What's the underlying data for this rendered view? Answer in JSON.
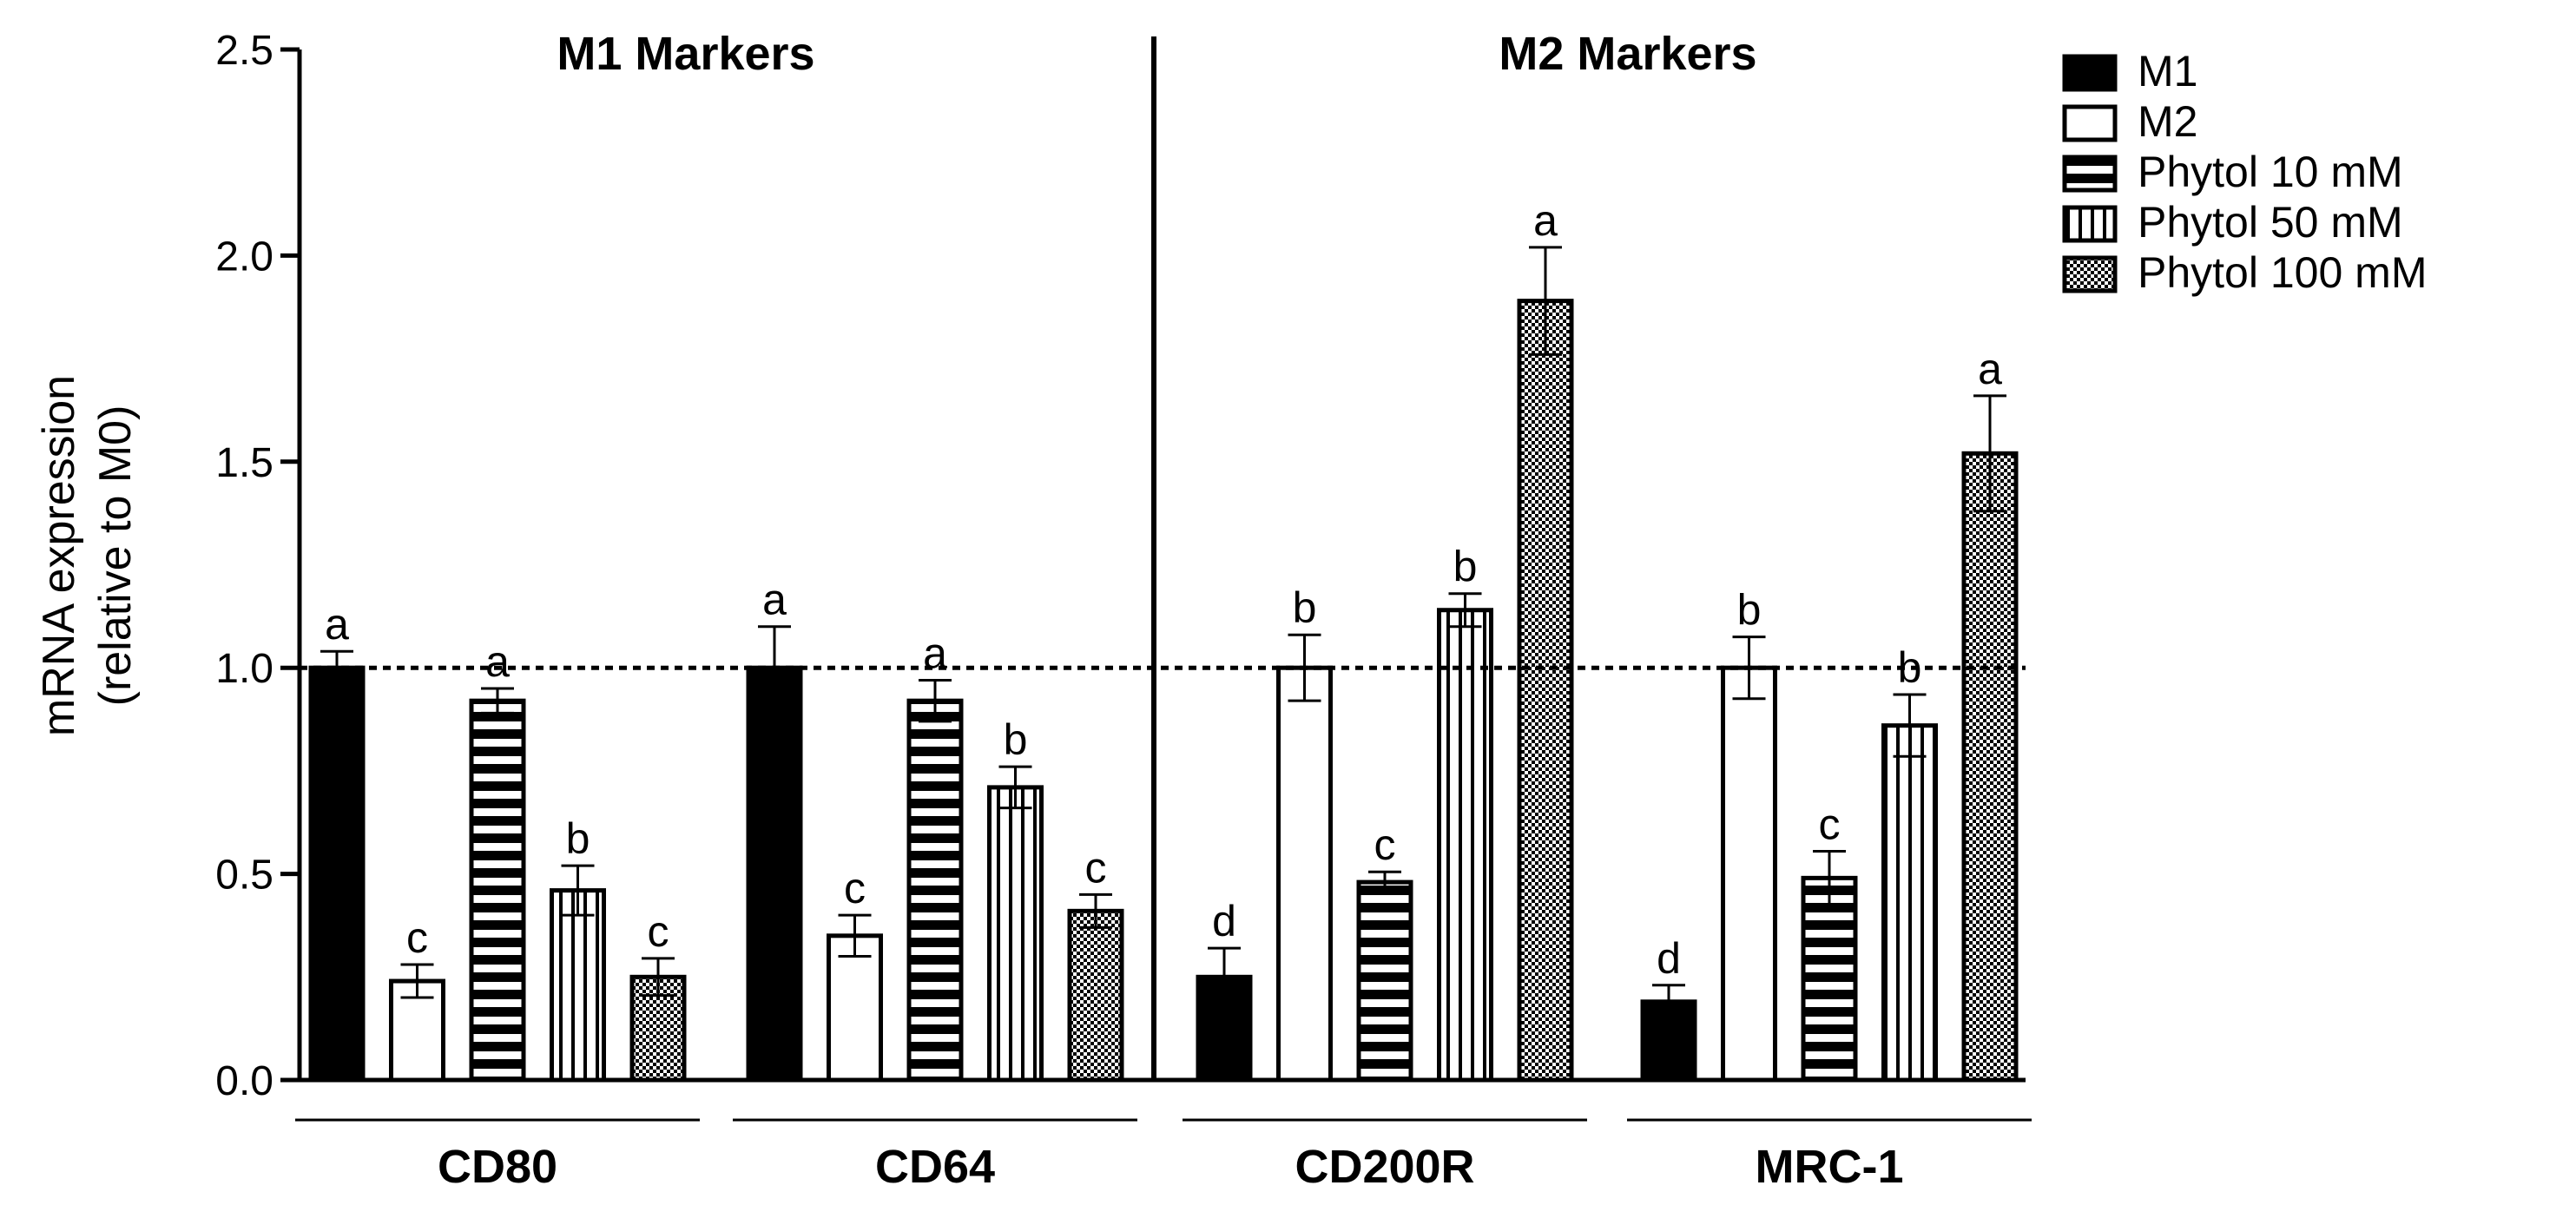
{
  "chart_data": {
    "type": "bar",
    "ylabel_line1": "mRNA expression",
    "ylabel_line2": "(relative to M0)",
    "ylim": [
      0,
      2.5
    ],
    "yticks": [
      "0.0",
      "0.5",
      "1.0",
      "1.5",
      "2.0",
      "2.5"
    ],
    "reference_line": 1.0,
    "sections": [
      "M1 Markers",
      "M2 Markers"
    ],
    "categories": [
      "CD80",
      "CD64",
      "CD200R",
      "MRC-1"
    ],
    "series": [
      {
        "name": "M1",
        "pattern": "solid",
        "values": [
          1.0,
          1.0,
          0.25,
          0.19
        ],
        "errors": [
          0.04,
          0.1,
          0.07,
          0.04
        ],
        "labels": [
          "a",
          "a",
          "d",
          "d"
        ]
      },
      {
        "name": "M2",
        "pattern": "open",
        "values": [
          0.24,
          0.35,
          1.0,
          1.0
        ],
        "errors": [
          0.04,
          0.05,
          0.08,
          0.075
        ],
        "labels": [
          "c",
          "c",
          "b",
          "b"
        ]
      },
      {
        "name": "Phytol 10 mM",
        "pattern": "horizontal",
        "values": [
          0.92,
          0.92,
          0.48,
          0.49
        ],
        "errors": [
          0.03,
          0.05,
          0.025,
          0.065
        ],
        "labels": [
          "a",
          "a",
          "c",
          "c"
        ]
      },
      {
        "name": "Phytol 50 mM",
        "pattern": "vertical",
        "values": [
          0.46,
          0.71,
          1.14,
          0.86
        ],
        "errors": [
          0.06,
          0.05,
          0.04,
          0.075
        ],
        "labels": [
          "b",
          "b",
          "b",
          "b"
        ]
      },
      {
        "name": "Phytol 100 mM",
        "pattern": "checker",
        "values": [
          0.25,
          0.41,
          1.89,
          1.52
        ],
        "errors": [
          0.045,
          0.04,
          0.13,
          0.14
        ],
        "labels": [
          "c",
          "c",
          "a",
          "a"
        ]
      }
    ]
  }
}
